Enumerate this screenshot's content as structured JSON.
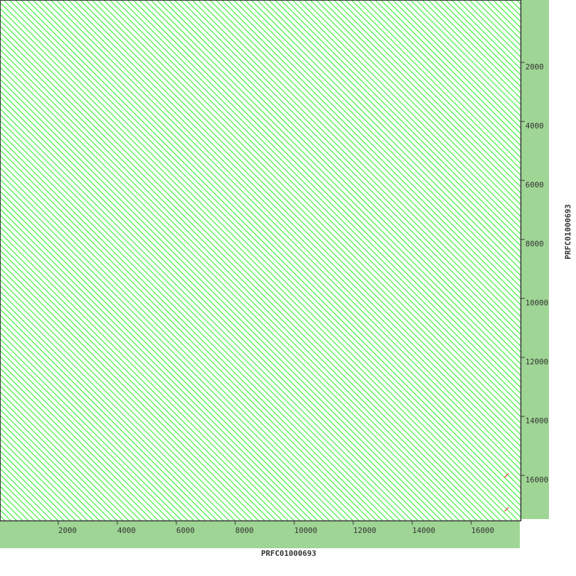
{
  "chart_data": {
    "type": "scatter",
    "subtype": "dot-plot",
    "xlabel": "PRFC01000693",
    "ylabel": "PRFC01000693",
    "xlim": [
      0,
      17600
    ],
    "ylim": [
      0,
      17600
    ],
    "y_inverted": true,
    "x_ticks": [
      "2000",
      "4000",
      "6000",
      "8000",
      "10000",
      "12000",
      "14000",
      "16000"
    ],
    "y_ticks": [
      "2000",
      "4000",
      "6000",
      "8000",
      "10000",
      "12000",
      "14000",
      "16000"
    ],
    "repeat_period": 200,
    "grid": false,
    "colors": {
      "match": "#22ee22",
      "reverse": "#ff2020",
      "band": "#9fd595",
      "axis": "#333333"
    },
    "reverse_matches": [
      {
        "x": 17200,
        "y": 16000
      },
      {
        "x": 17200,
        "y": 17150
      }
    ]
  }
}
